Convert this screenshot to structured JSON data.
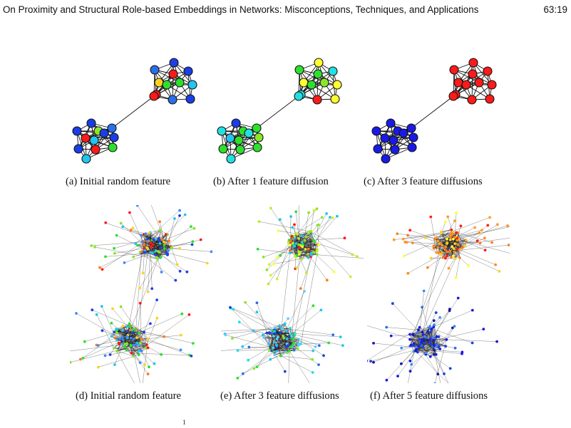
{
  "header": {
    "title": "On Proximity and Structural Role-based Embeddings in Networks: Misconceptions, Techniques, and Applications",
    "page_number": "63:19"
  },
  "subfigures": [
    {
      "label": "(a)",
      "caption": "Initial random feature"
    },
    {
      "label": "(b)",
      "caption": "After 1 feature diffusion"
    },
    {
      "label": "(c)",
      "caption": "After 3 feature diffusions"
    },
    {
      "label": "(d)",
      "caption": "Initial random feature"
    },
    {
      "label": "(e)",
      "caption": "After 3 feature diffusions"
    },
    {
      "label": "(f)",
      "caption": "After 5 feature diffusions"
    }
  ],
  "footnote_mark": "1",
  "small_graphs": [
    {
      "colors": [
        "#1f3fe0",
        "#2b6fe8",
        "#1a3ee6",
        "#ff1a1a",
        "#ffd21f",
        "#2de02d",
        "#21c6f0",
        "#2de02d",
        "#ff1a1a",
        "#2b6fe8",
        "#1a3ee6",
        "#ff1a1a",
        "#1a3ee6",
        "#1a3ee6",
        "#2b6fe8",
        "#8ae62a",
        "#ff1a1a",
        "#1a3ee6",
        "#21c6f0",
        "#1a3ee6",
        "#1a3ee6",
        "#ff1a1a",
        "#2de02d",
        "#21c6f0"
      ]
    },
    {
      "colors": [
        "#ffff2e",
        "#2de02d",
        "#21e0e0",
        "#2de02d",
        "#ffff2e",
        "#8ae62a",
        "#ffff2e",
        "#2de02d",
        "#21e0e0",
        "#ff1a1a",
        "#ffff2e",
        "#21e0e0",
        "#1a3ee6",
        "#21e0e0",
        "#2de02d",
        "#2de02d",
        "#21c6f0",
        "#21e0e0",
        "#2de02d",
        "#8ae62a",
        "#2de02d",
        "#2de02d",
        "#2de02d",
        "#21e0e0"
      ]
    },
    {
      "colors": [
        "#ff1a1a",
        "#ff1a1a",
        "#ff1a1a",
        "#ff1a1a",
        "#ff1a1a",
        "#ff1a1a",
        "#ff1a1a",
        "#ff1a1a",
        "#ff1a1a",
        "#ff1a1a",
        "#ff1a1a",
        "#ff1a1a",
        "#1a1ae6",
        "#1a1ae6",
        "#1a1ae6",
        "#1a1ae6",
        "#1a1ae6",
        "#1a1ae6",
        "#1a1ae6",
        "#1a1ae6",
        "#1a1ae6",
        "#1a1ae6",
        "#1a1ae6",
        "#1a1ae6"
      ]
    }
  ],
  "large_graphs": [
    {
      "top_palette": [
        "#1f3fe0",
        "#2de02d",
        "#ffd21f",
        "#ff7a1a",
        "#21c6f0",
        "#8ae62a",
        "#ff1a1a",
        "#3a8cff"
      ],
      "bottom_palette": [
        "#21c6f0",
        "#2de02d",
        "#ffd21f",
        "#ff1a1a",
        "#1f3fe0",
        "#8ae62a",
        "#ff7a1a",
        "#3a8cff"
      ]
    },
    {
      "top_palette": [
        "#8ae62a",
        "#b8ee2a",
        "#ffff2e",
        "#ff7a1a",
        "#2de02d",
        "#21c6f0",
        "#ff1a1a",
        "#d8ee2a"
      ],
      "bottom_palette": [
        "#21c6f0",
        "#21e0e0",
        "#2b6fe8",
        "#2de02d",
        "#5ad0ff",
        "#1f3fe0",
        "#21c6f0",
        "#8ae62a"
      ]
    },
    {
      "top_palette": [
        "#ff8a1a",
        "#ff7a1a",
        "#ffa01a",
        "#ffd21f",
        "#ff1a1a",
        "#ff8a1a",
        "#ffff2e",
        "#ff9a2a"
      ],
      "bottom_palette": [
        "#1a1ae6",
        "#1f3fe0",
        "#2b6fe8",
        "#1a1ae6",
        "#3a8cff",
        "#1a1ae6",
        "#1a1aa0",
        "#1f3fe0"
      ]
    }
  ]
}
